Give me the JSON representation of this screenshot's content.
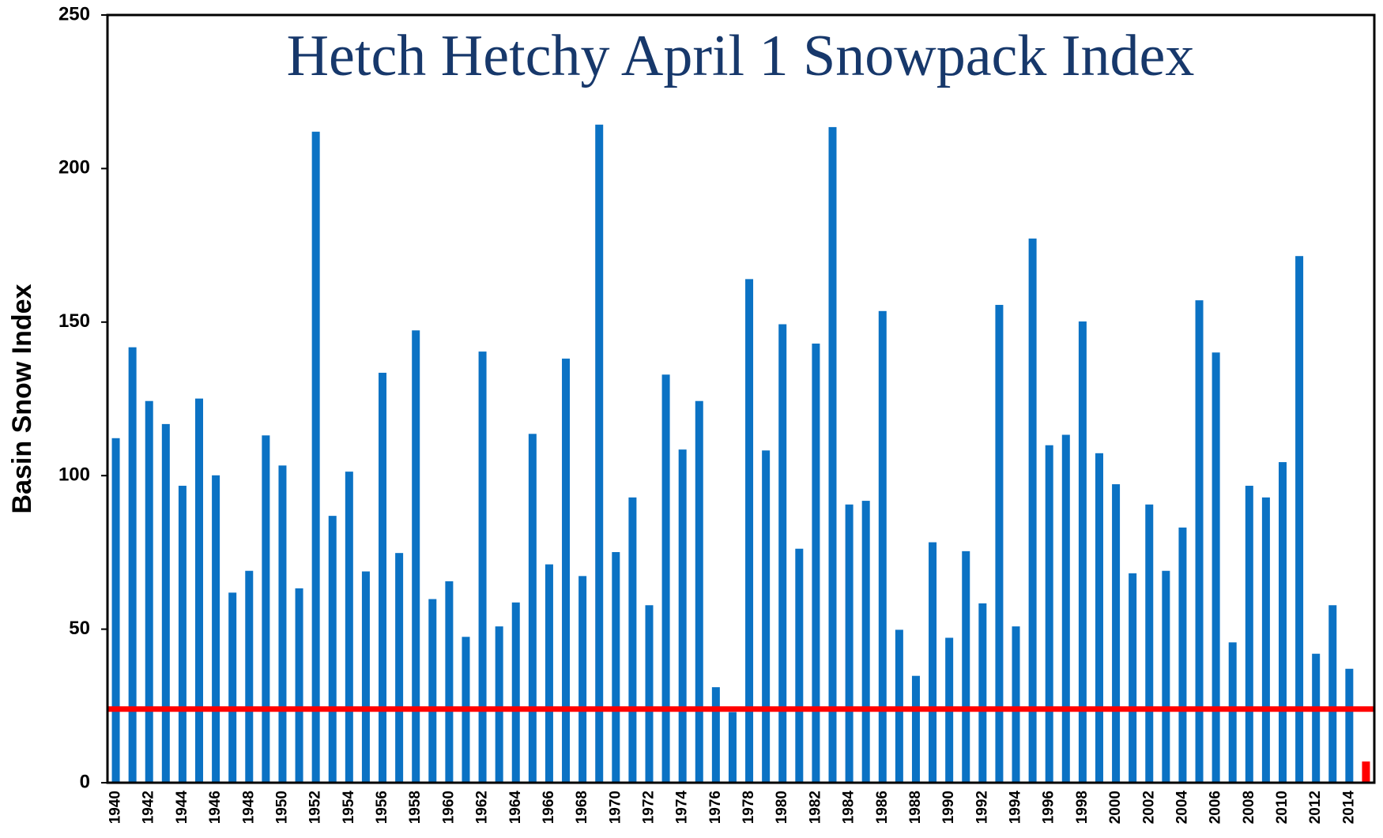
{
  "chart_data": {
    "type": "bar",
    "title": "Hetch Hetchy April 1 Snowpack Index",
    "y_label": "Basin Snow Index",
    "categories": [
      "1940",
      null,
      "1942",
      null,
      "1944",
      null,
      "1946",
      null,
      "1948",
      null,
      "1950",
      null,
      "1952",
      null,
      "1954",
      null,
      "1956",
      null,
      "1958",
      null,
      "1960",
      null,
      "1962",
      null,
      "1964",
      null,
      "1966",
      null,
      "1968",
      null,
      "1970",
      null,
      "1972",
      null,
      "1974",
      null,
      "1976",
      null,
      "1978",
      null,
      "1980",
      null,
      "1982",
      null,
      "1984",
      null,
      "1986",
      null,
      "1988",
      null,
      "1990",
      null,
      "1992",
      null,
      "1994",
      null,
      "1996",
      null,
      "1998",
      null,
      "2000",
      null,
      "2002",
      null,
      "2004",
      null,
      "2006",
      null,
      "2008",
      null,
      "2010",
      null,
      "2012",
      null,
      "2014",
      null
    ],
    "values": [
      112.2,
      141.8,
      124.3,
      116.8,
      96.7,
      125.1,
      100.1,
      61.9,
      69.0,
      113.1,
      103.3,
      63.3,
      212.0,
      86.9,
      101.3,
      68.8,
      133.5,
      74.8,
      147.3,
      59.8,
      65.6,
      47.5,
      140.4,
      50.9,
      58.7,
      113.6,
      71.1,
      138.1,
      67.3,
      214.3,
      75.1,
      92.9,
      57.8,
      132.9,
      108.5,
      124.3,
      31.1,
      23,
      164.0,
      108.2,
      149.3,
      76.2,
      143.0,
      213.5,
      90.6,
      91.8,
      153.6,
      49.8,
      34.8,
      78.3,
      47.2,
      75.4,
      58.4,
      155.6,
      50.9,
      177.2,
      109.9,
      113.3,
      150.2,
      107.3,
      97.2,
      68.2,
      90.6,
      69.0,
      83.1,
      157.1,
      140.1,
      45.7,
      96.7,
      92.9,
      104.4,
      171.5,
      42.0,
      57.8,
      37.1,
      6.9
    ],
    "color": "#0b72c4",
    "highlight": {
      "index": 75,
      "color": "#ff0000"
    },
    "reference_line": {
      "value": 24,
      "color": "#ff0000"
    },
    "ylim": [
      0,
      250
    ],
    "yticks": [
      0,
      50,
      100,
      150,
      200,
      250
    ],
    "grid": false
  }
}
